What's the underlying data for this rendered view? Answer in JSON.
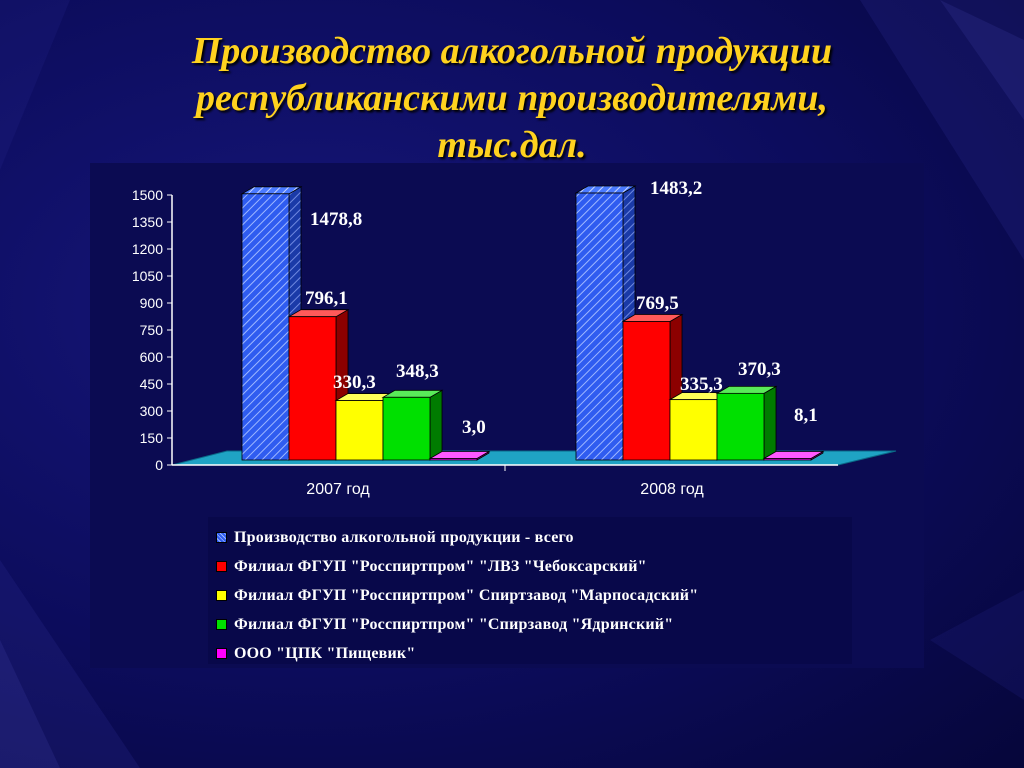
{
  "slide": {
    "title_lines": [
      "Производство алкогольной продукции",
      "республиканскими производителями,",
      "тыс.дал."
    ]
  },
  "chart_data": {
    "type": "bar",
    "categories": [
      "2007 год",
      "2008 год"
    ],
    "series": [
      {
        "name": "Производство алкогольной продукции - всего",
        "values": [
          1478.8,
          1483.2
        ],
        "labels": [
          "1478,8",
          "1483,2"
        ],
        "color": "#2f5cf0",
        "pattern": "hatched"
      },
      {
        "name": "Филиал ФГУП \"Росспиртпром\" \"ЛВЗ \"Чебоксарский\"",
        "values": [
          796.1,
          769.5
        ],
        "labels": [
          "796,1",
          "769,5"
        ],
        "color": "#ff0000"
      },
      {
        "name": "Филиал ФГУП \"Росспиртпром\" Спиртзавод \"Марпосадский\"",
        "values": [
          330.3,
          335.3
        ],
        "labels": [
          "330,3",
          "335,3"
        ],
        "color": "#ffff00"
      },
      {
        "name": "Филиал ФГУП \"Росспиртпром\" \"Спирзавод \"Ядринский\"",
        "values": [
          348.3,
          370.3
        ],
        "labels": [
          "348,3",
          "370,3"
        ],
        "color": "#00e000"
      },
      {
        "name": "ООО \"ЦПК \"Пищевик\"",
        "values": [
          3.0,
          8.1
        ],
        "labels": [
          "3,0",
          "8,1"
        ],
        "color": "#ff00ff"
      }
    ],
    "ylim": [
      0,
      1500
    ],
    "yticks": [
      0,
      150,
      300,
      450,
      600,
      750,
      900,
      1050,
      1200,
      1350,
      1500
    ],
    "legend_position": "bottom",
    "grid": false
  }
}
